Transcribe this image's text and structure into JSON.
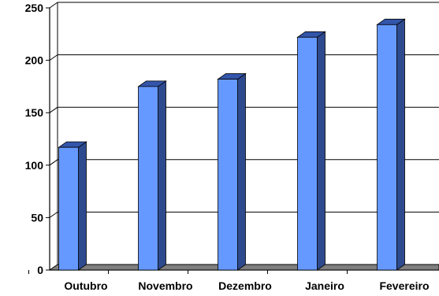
{
  "chart_data": {
    "type": "bar",
    "title": "",
    "xlabel": "",
    "ylabel": "",
    "categories": [
      "Outubro",
      "Novembro",
      "Dezembro",
      "Janeiro",
      "Fevereiro"
    ],
    "values": [
      117,
      175,
      182,
      222,
      234
    ],
    "ylim": [
      0,
      250
    ],
    "yticks": [
      "0",
      "50",
      "100",
      "150",
      "200",
      "250"
    ],
    "grid": true,
    "legend": "none",
    "style": "3d-column",
    "colors": {
      "bar_front": "#6699ff",
      "bar_side": "#2e4a8f",
      "bar_top": "#3355aa",
      "floor": "#7f7f7f",
      "grid": "#000000"
    }
  }
}
